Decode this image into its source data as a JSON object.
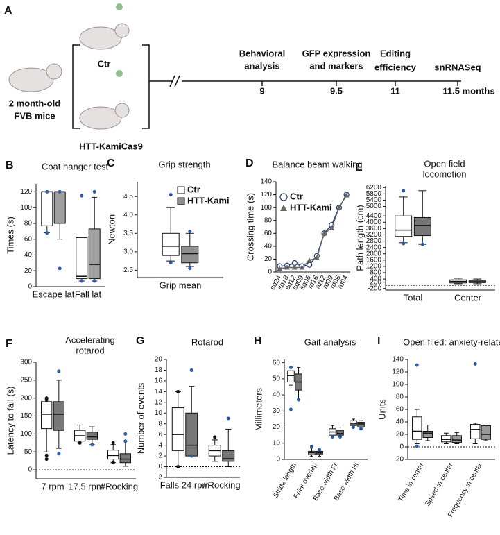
{
  "timeline": {
    "label": "A",
    "mice_label": [
      "2 month-old",
      "FVB mice"
    ],
    "groups": [
      "Ctr",
      "HTT-KamiCas9"
    ],
    "events": [
      [
        "Behavioral",
        "analysis"
      ],
      [
        "GFP expression",
        "and markers"
      ],
      [
        "Editing",
        "efficiency"
      ],
      [
        "snRNASeq"
      ]
    ],
    "ticks": [
      "9",
      "9.5",
      "11",
      "11.5 months"
    ]
  },
  "chart_data": [
    {
      "type": "box",
      "label": "B",
      "title": [
        "Coat hanger test"
      ],
      "ylabel": "Times (s)",
      "ylim": [
        0,
        130
      ],
      "yticks": [
        0,
        20,
        40,
        60,
        80,
        100,
        120
      ],
      "categories": [
        "Escape lat",
        "Fall lat"
      ],
      "series": [
        {
          "color": "#ffffff",
          "outlier_color": "#2a5caa",
          "boxes": [
            {
              "min": 68,
              "q1": 77,
              "median": 120,
              "q3": 120,
              "max": 120,
              "outliers": [
                68,
                120
              ]
            },
            {
              "min": 7,
              "q1": 10,
              "median": 13,
              "q3": 62,
              "max": 62,
              "outliers": [
                7,
                115
              ]
            }
          ]
        },
        {
          "color": "#a0a0a0",
          "outlier_color": "#2a5caa",
          "boxes": [
            {
              "min": 60,
              "q1": 80,
              "median": 120,
              "q3": 120,
              "max": 120,
              "outliers": [
                23,
                120
              ]
            },
            {
              "min": 7,
              "q1": 10,
              "median": 28,
              "q3": 73,
              "max": 113,
              "outliers": [
                7,
                120
              ]
            }
          ]
        }
      ]
    },
    {
      "type": "box",
      "label": "C",
      "title": [
        "Grip strength"
      ],
      "ylabel": "Newton",
      "ylim": [
        2.3,
        4.9
      ],
      "yticks": [
        {
          "value": 2.5,
          "label": "2.5"
        },
        {
          "value": 3,
          "label": "3.0"
        },
        {
          "value": 3.5,
          "label": "3.5"
        },
        {
          "value": 4,
          "label": "4.0"
        },
        {
          "value": 4.5,
          "label": "4.5"
        }
      ],
      "categories": [
        "Grip mean"
      ],
      "legend": "upper right",
      "series": [
        {
          "name": "Ctr",
          "color": "#ffffff",
          "outlier_color": "#2a5caa",
          "boxes": [
            {
              "min": 2.75,
              "q1": 2.9,
              "median": 3.15,
              "q3": 3.5,
              "max": 4.2,
              "outliers": [
                2.7,
                4.55
              ]
            }
          ]
        },
        {
          "name": "HTT-Kami",
          "color": "#909090",
          "outlier_color": "#2a5caa",
          "boxes": [
            {
              "min": 2.6,
              "q1": 2.7,
              "median": 2.95,
              "q3": 3.15,
              "max": 3.5,
              "outliers": [
                2.55,
                3.55
              ]
            }
          ]
        }
      ]
    },
    {
      "type": "line",
      "label": "D",
      "title": [
        "Balance beam walking"
      ],
      "ylabel": "Crossing time (s)",
      "ylim": [
        0,
        140
      ],
      "yticks": [
        0,
        20,
        40,
        60,
        80,
        100,
        120,
        140
      ],
      "categories": [
        "sq24",
        "sq18",
        "sq12",
        "sq09",
        "sq06",
        "rd16",
        "rd12",
        "rd09",
        "rd06",
        "rd04"
      ],
      "rotate_labels": true,
      "legend": "upper left",
      "series": [
        {
          "name": "Ctr",
          "color": "#1f3a6e",
          "marker": "circle",
          "values": [
            9,
            10,
            14,
            9,
            11,
            25,
            60,
            73,
            100,
            120
          ]
        },
        {
          "name": "HTT-Kami",
          "color": "#666666",
          "marker": "triangle",
          "values": [
            5,
            7,
            7,
            7,
            18,
            22,
            60,
            68,
            100,
            119
          ]
        }
      ]
    },
    {
      "type": "box",
      "label": "E",
      "title": [
        "Open field",
        "locomotion"
      ],
      "ylabel": "Path length (cm)",
      "ylim": [
        -300,
        6300
      ],
      "zero_line": true,
      "yticks": [
        -200,
        200,
        400,
        800,
        1200,
        1600,
        2000,
        2400,
        2800,
        3200,
        3600,
        4000,
        4400,
        5000,
        5400,
        5800,
        6200
      ],
      "categories": [
        "Total",
        "Center"
      ],
      "series": [
        {
          "color": "#ffffff",
          "outlier_color": "#2a5caa",
          "boxes": [
            {
              "min": 2700,
              "q1": 3100,
              "median": 3500,
              "q3": 4400,
              "max": 5600,
              "outliers": [
                2650,
                6000
              ]
            },
            {
              "min": 100,
              "q1": 150,
              "median": 250,
              "q3": 350,
              "max": 450,
              "outliers": []
            }
          ]
        },
        {
          "color": "#777777",
          "outlier_color": "#2a5caa",
          "boxes": [
            {
              "min": 2600,
              "q1": 3150,
              "median": 3800,
              "q3": 4300,
              "max": 6000,
              "outliers": [
                2600
              ]
            },
            {
              "min": 100,
              "q1": 170,
              "median": 230,
              "q3": 320,
              "max": 400,
              "outliers": []
            }
          ]
        }
      ]
    },
    {
      "type": "box",
      "label": "F",
      "title": [
        "Accelerating",
        "rotarod"
      ],
      "ylabel": "Latency to fall (s)",
      "ylim": [
        -25,
        300
      ],
      "yticks": [
        0,
        50,
        100,
        150,
        200,
        250,
        300
      ],
      "zero_line": true,
      "categories": [
        "7 rpm",
        "17.5 rpm",
        "#Rocking"
      ],
      "series": [
        {
          "color": "#ffffff",
          "outlier_color": "#111111",
          "boxes": [
            {
              "min": 50,
              "q1": 115,
              "median": 155,
              "q3": 190,
              "max": 200,
              "outliers": [
                30,
                40,
                195,
                200
              ]
            },
            {
              "min": 75,
              "q1": 80,
              "median": 95,
              "q3": 110,
              "max": 125,
              "outliers": [
                75
              ]
            },
            {
              "min": 20,
              "q1": 30,
              "median": 40,
              "q3": 55,
              "max": 70,
              "outliers": [
                20,
                75
              ]
            }
          ]
        },
        {
          "color": "#777777",
          "outlier_color": "#2a5caa",
          "boxes": [
            {
              "min": 60,
              "q1": 110,
              "median": 155,
              "q3": 190,
              "max": 250,
              "outliers": [
                45,
                275
              ]
            },
            {
              "min": 70,
              "q1": 85,
              "median": 92,
              "q3": 105,
              "max": 120,
              "outliers": [
                70
              ]
            },
            {
              "min": 10,
              "q1": 20,
              "median": 30,
              "q3": 45,
              "max": 80,
              "outliers": [
                80,
                100
              ]
            }
          ]
        }
      ]
    },
    {
      "type": "box",
      "label": "G",
      "title": [
        "Rotarod"
      ],
      "ylabel": "Number of events",
      "ylim": [
        -2,
        20
      ],
      "yticks": [
        -2,
        0,
        2,
        4,
        6,
        8,
        10,
        12,
        14,
        16,
        18,
        20
      ],
      "zero_line": true,
      "categories": [
        "Falls 24 rpm",
        "#Rocking"
      ],
      "series": [
        {
          "color": "#ffffff",
          "outlier_color": "#111111",
          "boxes": [
            {
              "min": 0,
              "q1": 3,
              "median": 6,
              "q3": 11,
              "max": 14,
              "outliers": [
                0,
                14
              ]
            },
            {
              "min": 1,
              "q1": 2,
              "median": 3,
              "q3": 4,
              "max": 5,
              "outliers": [
                5.5
              ]
            }
          ]
        },
        {
          "color": "#777777",
          "outlier_color": "#2a5caa",
          "boxes": [
            {
              "min": 2,
              "q1": 2,
              "median": 4,
              "q3": 10,
              "max": 15,
              "outliers": [
                2,
                18
              ]
            },
            {
              "min": 0,
              "q1": 1,
              "median": 1.5,
              "q3": 3,
              "max": 7,
              "outliers": [
                9
              ]
            }
          ]
        }
      ]
    },
    {
      "type": "box",
      "label": "H",
      "title": [
        "Gait analysis"
      ],
      "ylabel": "Millimeters",
      "ylim": [
        0,
        62
      ],
      "yticks": [
        0,
        10,
        20,
        30,
        40,
        50,
        60
      ],
      "rotate_labels": true,
      "categories": [
        "Stride length",
        "Fr/Hi overlap",
        "Base width Fr",
        "Base width Hi"
      ],
      "series": [
        {
          "color": "#ffffff",
          "outlier_color": "#2a5caa",
          "boxes": [
            {
              "min": 46,
              "q1": 48,
              "median": 52,
              "q3": 55,
              "max": 57,
              "outliers": [
                31,
                57
              ]
            },
            {
              "min": 2,
              "q1": 3,
              "median": 4,
              "q3": 5,
              "max": 7,
              "outliers": [
                8
              ]
            },
            {
              "min": 14,
              "q1": 15,
              "median": 17,
              "q3": 19,
              "max": 21,
              "outliers": [
                14
              ]
            },
            {
              "min": 20,
              "q1": 21,
              "median": 22,
              "q3": 24,
              "max": 25,
              "outliers": [
                20
              ]
            }
          ]
        },
        {
          "color": "#777777",
          "outlier_color": "#2a5caa",
          "boxes": [
            {
              "min": 37,
              "q1": 43,
              "median": 48,
              "q3": 53,
              "max": 57,
              "outliers": [
                37
              ]
            },
            {
              "min": 2,
              "q1": 3,
              "median": 4,
              "q3": 5,
              "max": 6,
              "outliers": [
                6
              ]
            },
            {
              "min": 14,
              "q1": 15,
              "median": 16,
              "q3": 18,
              "max": 20,
              "outliers": [
                14
              ]
            },
            {
              "min": 19,
              "q1": 20,
              "median": 22,
              "q3": 23,
              "max": 24,
              "outliers": [
                19
              ]
            }
          ]
        }
      ]
    },
    {
      "type": "box",
      "label": "I",
      "title": [
        "Open filed:  anxiety-related"
      ],
      "ylabel": "Units",
      "ylim": [
        -20,
        140
      ],
      "yticks": [
        -20,
        0,
        20,
        40,
        60,
        80,
        100,
        120,
        140
      ],
      "zero_line": true,
      "rotate_labels": true,
      "categories": [
        "Time in center",
        "Speed in center",
        "Frequency in center"
      ],
      "series": [
        {
          "color": "#ffffff",
          "outlier_color": "#2a5caa",
          "boxes": [
            {
              "min": 5,
              "q1": 12,
              "median": 25,
              "q3": 48,
              "max": 60,
              "outliers": [
                1,
                131
              ]
            },
            {
              "min": 5,
              "q1": 8,
              "median": 12,
              "q3": 18,
              "max": 22,
              "outliers": []
            },
            {
              "min": 5,
              "q1": 13,
              "median": 28,
              "q3": 36,
              "max": 38,
              "outliers": [
                133
              ]
            }
          ]
        },
        {
          "color": "#999999",
          "outlier_color": "#2a5caa",
          "boxes": [
            {
              "min": 10,
              "q1": 15,
              "median": 22,
              "q3": 25,
              "max": 35,
              "outliers": []
            },
            {
              "min": 5,
              "q1": 7,
              "median": 11,
              "q3": 18,
              "max": 23,
              "outliers": []
            },
            {
              "min": 10,
              "q1": 12,
              "median": 20,
              "q3": 34,
              "max": 35,
              "outliers": []
            }
          ]
        }
      ]
    }
  ]
}
